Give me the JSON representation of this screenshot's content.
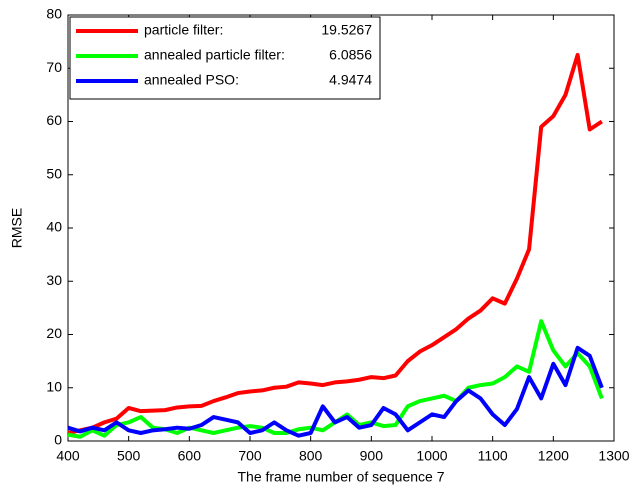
{
  "chart_data": {
    "type": "line",
    "xlabel": "The frame number of sequence 7",
    "ylabel": "RMSE",
    "x": [
      400,
      420,
      440,
      460,
      480,
      500,
      520,
      540,
      560,
      580,
      600,
      620,
      640,
      660,
      680,
      700,
      720,
      740,
      760,
      780,
      800,
      820,
      840,
      860,
      880,
      900,
      920,
      940,
      960,
      980,
      1000,
      1020,
      1040,
      1060,
      1080,
      1100,
      1120,
      1140,
      1160,
      1180,
      1200,
      1220,
      1240,
      1260,
      1280
    ],
    "series": [
      {
        "name": "particle filter:",
        "legend_value": 19.5267,
        "color": "#ff0000",
        "values": [
          1.5,
          2,
          2.5,
          3.5,
          4.2,
          6.2,
          5.6,
          5.7,
          5.8,
          6.3,
          6.5,
          6.6,
          7.5,
          8.2,
          9,
          9.3,
          9.5,
          10,
          10.2,
          11,
          10.8,
          10.5,
          11,
          11.2,
          11.5,
          12,
          11.8,
          12.3,
          15,
          16.8,
          18,
          19.5,
          21,
          23,
          24.5,
          26.8,
          25.8,
          30.5,
          36,
          59,
          61,
          65,
          72.5,
          58.5,
          60
        ]
      },
      {
        "name": "annealed particle filter:",
        "legend_value": 6.0856,
        "color": "#00ff00",
        "values": [
          1.2,
          0.8,
          2,
          1,
          3,
          3.5,
          4.5,
          2.5,
          2.2,
          1.5,
          2.5,
          2,
          1.5,
          2,
          2.5,
          2.8,
          2.5,
          1.5,
          1.5,
          2.2,
          2.5,
          2,
          3.5,
          5,
          3,
          3.5,
          2.8,
          3,
          6.5,
          7.5,
          8,
          8.5,
          7.5,
          10,
          10.5,
          10.8,
          12,
          14,
          13,
          22.5,
          17,
          14,
          16.5,
          14,
          8
        ]
      },
      {
        "name": "annealed PSO:",
        "legend_value": 4.9474,
        "color": "#0000ff",
        "values": [
          2.5,
          1.8,
          2.5,
          2,
          3.5,
          2,
          1.5,
          2,
          2.2,
          2.5,
          2.3,
          3,
          4.5,
          4,
          3.5,
          1.5,
          2,
          3.5,
          2,
          1,
          1.5,
          6.5,
          3.5,
          4.5,
          2.5,
          3,
          6.2,
          5,
          2,
          3.5,
          5,
          4.5,
          7.5,
          9.5,
          8,
          5,
          3,
          6,
          12,
          8,
          14.5,
          10.5,
          17.5,
          16,
          10
        ]
      }
    ],
    "xlim": [
      400,
      1300
    ],
    "xticks": [
      400,
      500,
      600,
      700,
      800,
      900,
      1000,
      1100,
      1200,
      1300
    ],
    "ylim": [
      0,
      80
    ],
    "yticks": [
      0,
      10,
      20,
      30,
      40,
      50,
      60,
      70,
      80
    ],
    "grid": false,
    "legend": "upper left"
  }
}
